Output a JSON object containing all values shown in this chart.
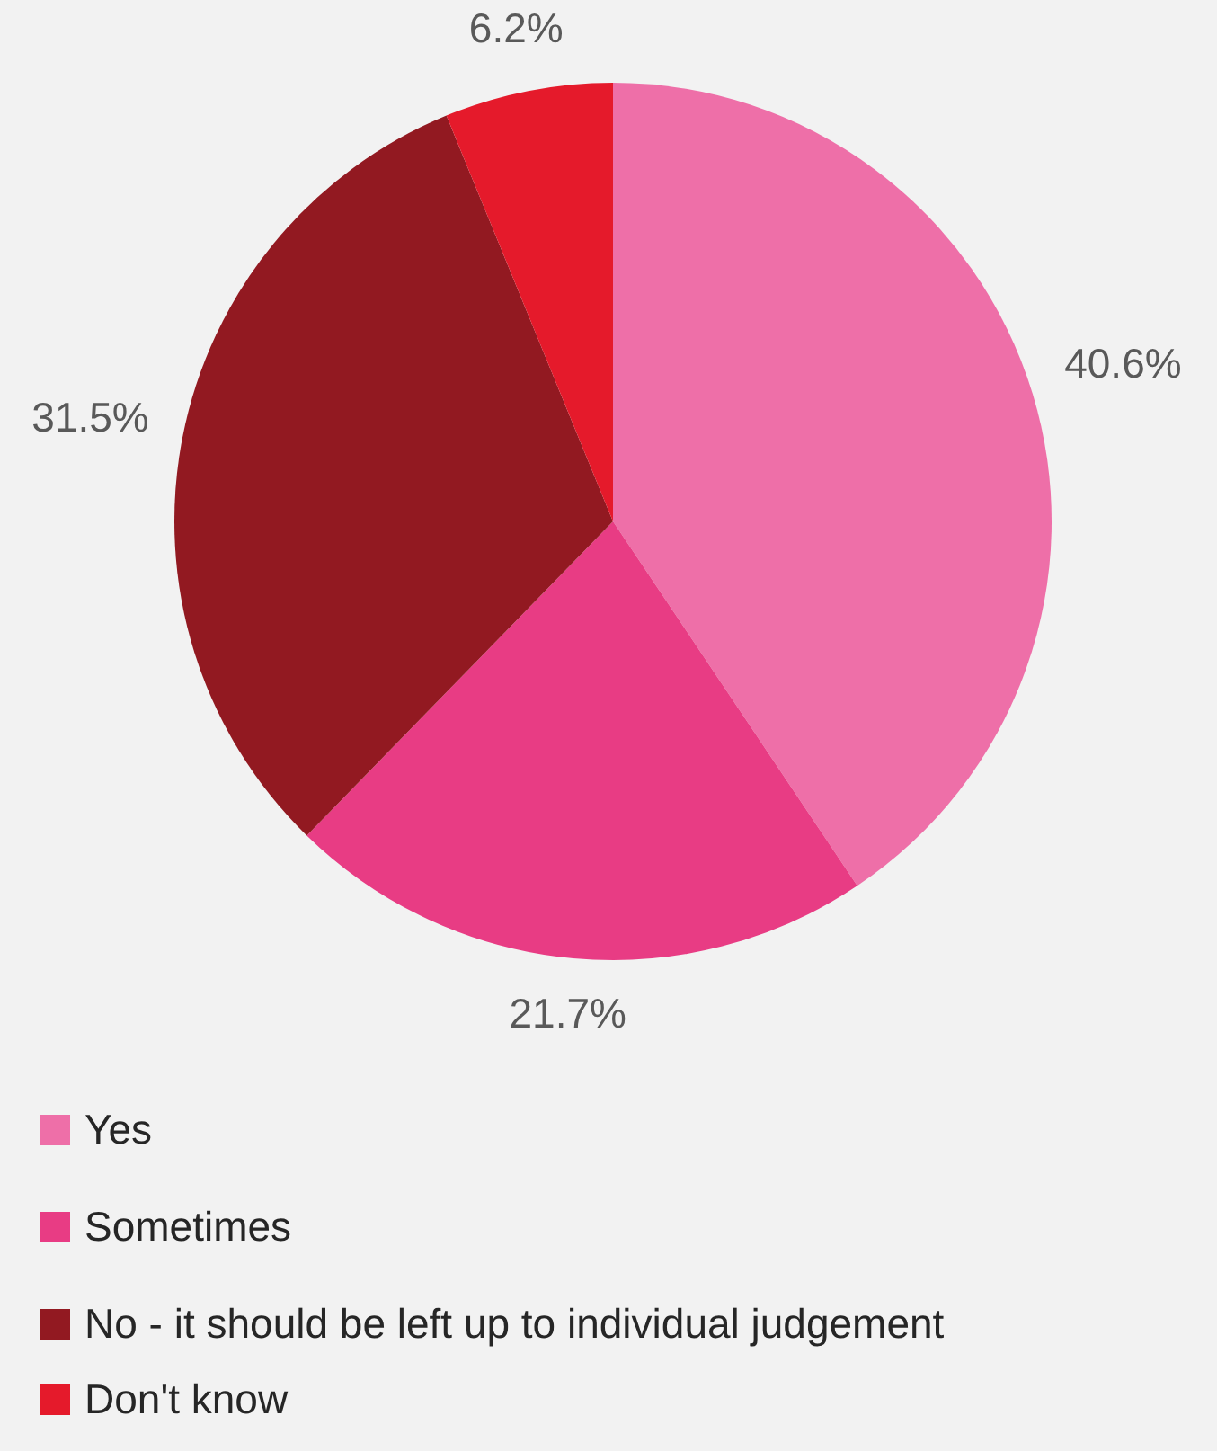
{
  "chart_data": {
    "type": "pie",
    "categories": [
      "Yes",
      "Sometimes",
      "No - it should be left up to individual judgement",
      "Don't know"
    ],
    "values": [
      40.6,
      21.7,
      31.5,
      6.2
    ],
    "colors": [
      "#ee6fa8",
      "#e83c84",
      "#921921",
      "#e51a2b"
    ],
    "value_labels": [
      "40.6%",
      "21.7%",
      "31.5%",
      "6.2%"
    ],
    "legend": "bottom"
  }
}
